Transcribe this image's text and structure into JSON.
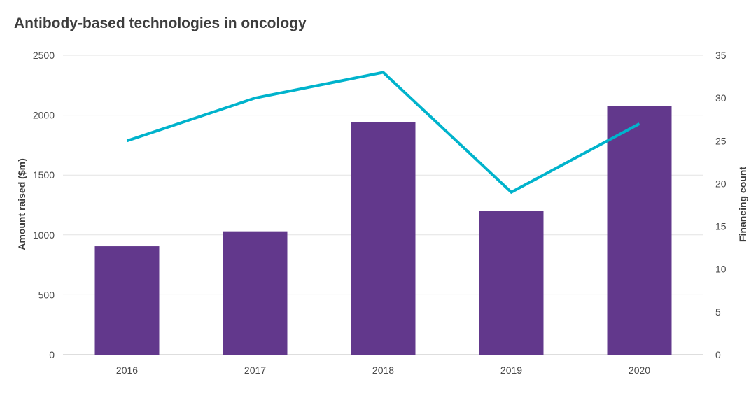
{
  "chart_data": {
    "type": "bar",
    "title": "Antibody-based technologies in oncology",
    "categories": [
      "2016",
      "2017",
      "2018",
      "2019",
      "2020"
    ],
    "series": [
      {
        "name": "Amount raised ($m)",
        "type": "bar",
        "axis": "left",
        "color": "#62388c",
        "values": [
          905,
          1030,
          1945,
          1200,
          2075
        ]
      },
      {
        "name": "Financing count",
        "type": "line",
        "axis": "right",
        "color": "#00b3cc",
        "values": [
          25,
          30,
          33,
          19,
          27
        ]
      }
    ],
    "ylabel": "Amount raised ($m)",
    "ylim": [
      0,
      2500
    ],
    "yticks": [
      "0",
      "500",
      "1000",
      "1500",
      "2000",
      "2500"
    ],
    "y2label": "Financing count",
    "y2lim": [
      0,
      35
    ],
    "y2ticks": [
      "0",
      "5",
      "10",
      "15",
      "20",
      "25",
      "30",
      "35"
    ],
    "grid": true
  }
}
